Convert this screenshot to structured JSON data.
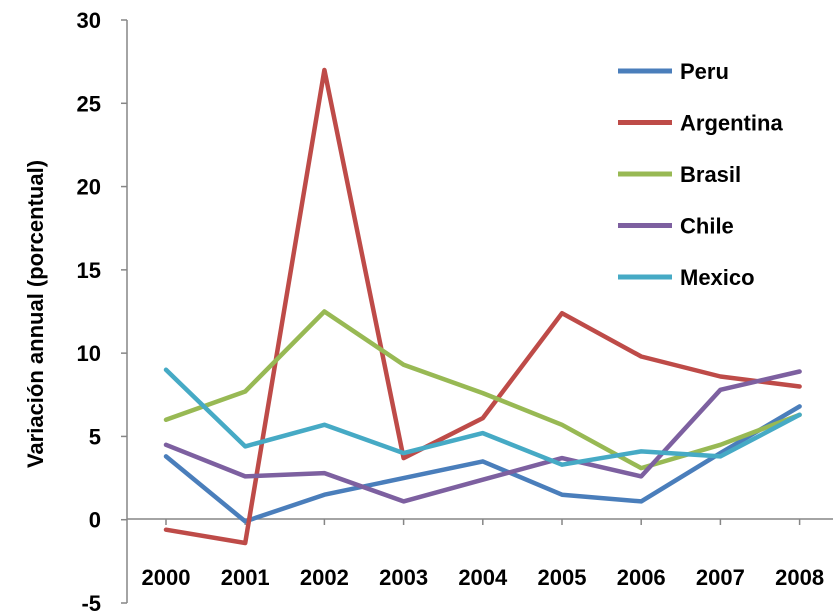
{
  "chart_data": {
    "type": "line",
    "title": "",
    "xlabel": "",
    "ylabel": "Variación annual (porcentual)",
    "categories": [
      "2000",
      "2001",
      "2002",
      "2003",
      "2004",
      "2005",
      "2006",
      "2007",
      "2008"
    ],
    "ylim": [
      -5,
      30
    ],
    "yticks": [
      "-5",
      "0",
      "5",
      "10",
      "15",
      "20",
      "25",
      "30"
    ],
    "grid": false,
    "legend_position": "top-right",
    "series": [
      {
        "name": "Peru",
        "color": "#4a7ebb",
        "values": [
          3.8,
          -0.1,
          1.5,
          2.5,
          3.5,
          1.5,
          1.1,
          4.0,
          6.8
        ]
      },
      {
        "name": "Argentina",
        "color": "#be4b48",
        "values": [
          -0.6,
          -1.4,
          27.0,
          3.7,
          6.1,
          12.4,
          9.8,
          8.6,
          8.0
        ]
      },
      {
        "name": "Brasil",
        "color": "#98b954",
        "values": [
          6.0,
          7.7,
          12.5,
          9.3,
          7.6,
          5.7,
          3.1,
          4.5,
          6.3
        ]
      },
      {
        "name": "Chile",
        "color": "#7d60a0",
        "values": [
          4.5,
          2.6,
          2.8,
          1.1,
          2.4,
          3.7,
          2.6,
          7.8,
          8.9
        ]
      },
      {
        "name": "Mexico",
        "color": "#46aac5",
        "values": [
          9.0,
          4.4,
          5.7,
          4.0,
          5.2,
          3.3,
          4.1,
          3.8,
          6.3
        ]
      }
    ]
  }
}
